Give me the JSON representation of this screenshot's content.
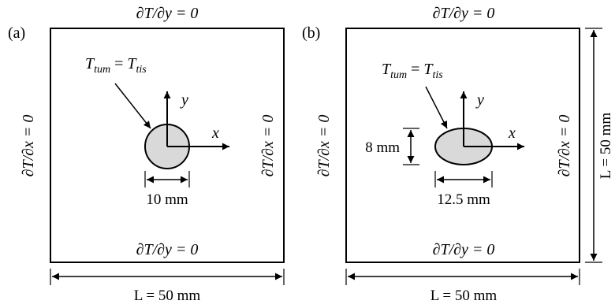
{
  "panels": [
    {
      "label": "(a)",
      "bc_top": "∂T/∂y = 0",
      "bc_bottom": "∂T/∂y = 0",
      "bc_left": "∂T/∂x = 0",
      "bc_right": "∂T/∂x = 0",
      "interface_condition": {
        "lhs": "T",
        "lhs_sub": "tum",
        "eq": " = ",
        "rhs": "T",
        "rhs_sub": "tis"
      },
      "axis_x": "x",
      "axis_y": "y",
      "tumor_shape": "circle",
      "tumor_width_label": "10 mm",
      "domain_width_label": "L = 50 mm"
    },
    {
      "label": "(b)",
      "bc_top": "∂T/∂y = 0",
      "bc_bottom": "∂T/∂y = 0",
      "bc_left": "∂T/∂x = 0",
      "bc_right": "∂T/∂x = 0",
      "interface_condition": {
        "lhs": "T",
        "lhs_sub": "tum",
        "eq": " = ",
        "rhs": "T",
        "rhs_sub": "tis"
      },
      "axis_x": "x",
      "axis_y": "y",
      "tumor_shape": "ellipse",
      "tumor_width_label": "12.5 mm",
      "tumor_height_label": "8 mm",
      "domain_width_label": "L = 50 mm",
      "domain_height_label": "L = 50 mm"
    }
  ],
  "colors": {
    "stroke": "#000000",
    "tumor_fill": "#d9d9d9",
    "background": "#ffffff"
  }
}
